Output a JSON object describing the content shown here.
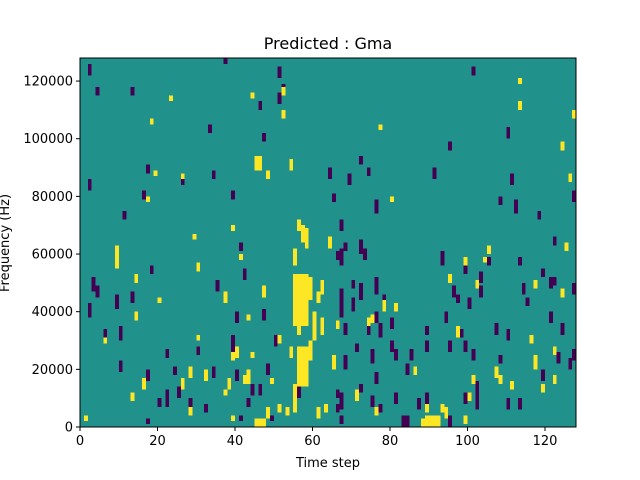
{
  "chart_data": {
    "type": "heatmap",
    "title": "Predicted : Gma",
    "xlabel": "Time step",
    "ylabel": "Frequency (Hz)",
    "xlim": [
      0,
      128
    ],
    "ylim": [
      0,
      128000
    ],
    "x_ticks": [
      0,
      20,
      40,
      60,
      80,
      100,
      120
    ],
    "y_ticks": [
      0,
      20000,
      40000,
      60000,
      80000,
      100000,
      120000
    ],
    "x_tick_labels": [
      "0",
      "20",
      "40",
      "60",
      "80",
      "100",
      "120"
    ],
    "y_tick_labels": [
      "0",
      "20000",
      "40000",
      "60000",
      "80000",
      "100000",
      "120000"
    ],
    "bin_height_hz": 1000,
    "colormap": "viridis",
    "background_value": 0.5,
    "colors": {
      "low": "#440154",
      "mid": "#21918c",
      "high": "#fde725"
    },
    "high_cells": [
      [
        1,
        2,
        4
      ],
      [
        6,
        29,
        31
      ],
      [
        9,
        55,
        63
      ],
      [
        13,
        9,
        12
      ],
      [
        14,
        37,
        40
      ],
      [
        14,
        50,
        53
      ],
      [
        16,
        13,
        17
      ],
      [
        17,
        78,
        80
      ],
      [
        18,
        105,
        107
      ],
      [
        19,
        87,
        89
      ],
      [
        20,
        43,
        45
      ],
      [
        23,
        113,
        115
      ],
      [
        26,
        13,
        17
      ],
      [
        26,
        86,
        88
      ],
      [
        28,
        4,
        7
      ],
      [
        28,
        17,
        21
      ],
      [
        29,
        65,
        67
      ],
      [
        30,
        30,
        32
      ],
      [
        30,
        54,
        57
      ],
      [
        32,
        16,
        20
      ],
      [
        37,
        43,
        47
      ],
      [
        37,
        11,
        13
      ],
      [
        38,
        13,
        17
      ],
      [
        39,
        68,
        70
      ],
      [
        39,
        23,
        26
      ],
      [
        39,
        2,
        4
      ],
      [
        40,
        24,
        28
      ],
      [
        41,
        58,
        60
      ],
      [
        42,
        15,
        18
      ],
      [
        43,
        37,
        39
      ],
      [
        43,
        15,
        20
      ],
      [
        44,
        24,
        26
      ],
      [
        44,
        114,
        116
      ],
      [
        45,
        0,
        3
      ],
      [
        45,
        89,
        94
      ],
      [
        46,
        0,
        3
      ],
      [
        46,
        89,
        94
      ],
      [
        47,
        45,
        49
      ],
      [
        47,
        0,
        3
      ],
      [
        48,
        86,
        89
      ],
      [
        48,
        3,
        7
      ],
      [
        49,
        15,
        17
      ],
      [
        51,
        29,
        32
      ],
      [
        51,
        5,
        8
      ],
      [
        52,
        115,
        118
      ],
      [
        52,
        107,
        110
      ],
      [
        53,
        4,
        7
      ],
      [
        54,
        24,
        28
      ],
      [
        54,
        89,
        93
      ],
      [
        55,
        56,
        62
      ],
      [
        55,
        35,
        53
      ],
      [
        55,
        5,
        15
      ],
      [
        56,
        68,
        72
      ],
      [
        56,
        32,
        53
      ],
      [
        56,
        14,
        28
      ],
      [
        57,
        64,
        70
      ],
      [
        57,
        35,
        53
      ],
      [
        57,
        14,
        28
      ],
      [
        58,
        62,
        69
      ],
      [
        58,
        35,
        53
      ],
      [
        58,
        14,
        28
      ],
      [
        59,
        44,
        52
      ],
      [
        59,
        23,
        30
      ],
      [
        60,
        30,
        40
      ],
      [
        61,
        3,
        7
      ],
      [
        61,
        43,
        47
      ],
      [
        62,
        46,
        51
      ],
      [
        62,
        32,
        38
      ],
      [
        63,
        5,
        8
      ],
      [
        64,
        62,
        66
      ],
      [
        65,
        20,
        25
      ],
      [
        66,
        34,
        37
      ],
      [
        71,
        9,
        13
      ],
      [
        74,
        35,
        38
      ],
      [
        75,
        36,
        39
      ],
      [
        76,
        4,
        7
      ],
      [
        77,
        103,
        105
      ],
      [
        78,
        40,
        44
      ],
      [
        80,
        78,
        80
      ],
      [
        81,
        40,
        43
      ],
      [
        86,
        18,
        21
      ],
      [
        88,
        0,
        3
      ],
      [
        89,
        5,
        8
      ],
      [
        89,
        0,
        4
      ],
      [
        90,
        0,
        4
      ],
      [
        91,
        0,
        4
      ],
      [
        92,
        0,
        4
      ],
      [
        93,
        5,
        8
      ],
      [
        94,
        3,
        7
      ],
      [
        95,
        50,
        53
      ],
      [
        97,
        31,
        35
      ],
      [
        99,
        56,
        59
      ],
      [
        99,
        1,
        4
      ],
      [
        100,
        9,
        12
      ],
      [
        101,
        15,
        18
      ],
      [
        102,
        48,
        51
      ],
      [
        104,
        57,
        59
      ],
      [
        105,
        60,
        63
      ],
      [
        107,
        17,
        21
      ],
      [
        108,
        15,
        18
      ],
      [
        111,
        13,
        16
      ],
      [
        113,
        119,
        121
      ],
      [
        113,
        110,
        113
      ],
      [
        116,
        29,
        32
      ],
      [
        117,
        48,
        51
      ],
      [
        117,
        20,
        25
      ],
      [
        119,
        12,
        15
      ],
      [
        122,
        25,
        28
      ],
      [
        122,
        15,
        18
      ],
      [
        124,
        45,
        48
      ],
      [
        124,
        96,
        99
      ],
      [
        125,
        61,
        64
      ],
      [
        126,
        85,
        88
      ],
      [
        127,
        107,
        110
      ]
    ],
    "low_cells": [
      [
        2,
        122,
        126
      ],
      [
        2,
        82,
        86
      ],
      [
        2,
        38,
        43
      ],
      [
        3,
        47,
        52
      ],
      [
        4,
        45,
        49
      ],
      [
        4,
        115,
        118
      ],
      [
        6,
        30,
        34
      ],
      [
        9,
        42,
        46
      ],
      [
        9,
        41,
        44
      ],
      [
        10,
        30,
        35
      ],
      [
        10,
        19,
        23
      ],
      [
        11,
        72,
        75
      ],
      [
        13,
        115,
        118
      ],
      [
        13,
        43,
        47
      ],
      [
        16,
        79,
        82
      ],
      [
        17,
        88,
        91
      ],
      [
        17,
        16,
        20
      ],
      [
        17,
        1,
        3
      ],
      [
        18,
        53,
        56
      ],
      [
        20,
        7,
        10
      ],
      [
        22,
        7,
        13
      ],
      [
        22,
        24,
        27
      ],
      [
        24,
        18,
        21
      ],
      [
        25,
        10,
        14
      ],
      [
        26,
        84,
        87
      ],
      [
        28,
        7,
        10
      ],
      [
        30,
        25,
        28
      ],
      [
        32,
        5,
        8
      ],
      [
        33,
        102,
        105
      ],
      [
        34,
        86,
        89
      ],
      [
        34,
        17,
        21
      ],
      [
        35,
        47,
        51
      ],
      [
        37,
        126,
        128
      ],
      [
        39,
        79,
        82
      ],
      [
        39,
        28,
        32
      ],
      [
        39,
        24,
        28
      ],
      [
        40,
        36,
        40
      ],
      [
        40,
        16,
        20
      ],
      [
        41,
        61,
        64
      ],
      [
        41,
        2,
        4
      ],
      [
        42,
        51,
        55
      ],
      [
        43,
        7,
        10
      ],
      [
        44,
        11,
        15
      ],
      [
        46,
        11,
        15
      ],
      [
        46,
        110,
        113
      ],
      [
        47,
        99,
        102
      ],
      [
        47,
        37,
        41
      ],
      [
        49,
        2,
        4
      ],
      [
        48,
        18,
        22
      ],
      [
        50,
        28,
        32
      ],
      [
        51,
        121,
        125
      ],
      [
        51,
        112,
        116
      ],
      [
        52,
        117,
        119
      ],
      [
        56,
        10,
        14
      ],
      [
        57,
        47,
        52
      ],
      [
        58,
        17,
        21
      ],
      [
        64,
        86,
        90
      ],
      [
        65,
        78,
        81
      ],
      [
        66,
        58,
        61
      ],
      [
        66,
        10,
        13
      ],
      [
        66,
        5,
        8
      ],
      [
        67,
        68,
        72
      ],
      [
        67,
        56,
        62
      ],
      [
        67,
        38,
        48
      ],
      [
        67,
        6,
        12
      ],
      [
        67,
        1,
        4
      ],
      [
        68,
        32,
        36
      ],
      [
        68,
        20,
        25
      ],
      [
        68,
        61,
        64
      ],
      [
        69,
        84,
        88
      ],
      [
        70,
        48,
        51
      ],
      [
        70,
        40,
        45
      ],
      [
        71,
        26,
        29
      ],
      [
        72,
        91,
        94
      ],
      [
        72,
        60,
        65
      ],
      [
        72,
        44,
        50
      ],
      [
        72,
        12,
        15
      ],
      [
        73,
        58,
        62
      ],
      [
        74,
        87,
        90
      ],
      [
        74,
        32,
        36
      ],
      [
        75,
        22,
        27
      ],
      [
        75,
        7,
        11
      ],
      [
        76,
        74,
        79
      ],
      [
        76,
        46,
        52
      ],
      [
        76,
        36,
        40
      ],
      [
        76,
        15,
        19
      ],
      [
        77,
        31,
        36
      ],
      [
        77,
        5,
        8
      ],
      [
        78,
        42,
        46
      ],
      [
        80,
        34,
        38
      ],
      [
        80,
        26,
        30
      ],
      [
        81,
        23,
        27
      ],
      [
        81,
        8,
        12
      ],
      [
        83,
        0,
        4
      ],
      [
        84,
        0,
        4
      ],
      [
        84,
        18,
        22
      ],
      [
        85,
        23,
        27
      ],
      [
        87,
        6,
        10
      ],
      [
        89,
        8,
        12
      ],
      [
        89,
        26,
        30
      ],
      [
        89,
        32,
        35
      ],
      [
        91,
        86,
        90
      ],
      [
        93,
        56,
        61
      ],
      [
        94,
        36,
        40
      ],
      [
        95,
        26,
        30
      ],
      [
        95,
        0,
        4
      ],
      [
        95,
        96,
        99
      ],
      [
        96,
        45,
        49
      ],
      [
        97,
        43,
        46
      ],
      [
        98,
        31,
        34
      ],
      [
        99,
        8,
        12
      ],
      [
        99,
        26,
        30
      ],
      [
        99,
        53,
        56
      ],
      [
        100,
        41,
        45
      ],
      [
        101,
        122,
        125
      ],
      [
        101,
        23,
        27
      ],
      [
        102,
        12,
        16
      ],
      [
        102,
        6,
        10
      ],
      [
        102,
        10,
        14
      ],
      [
        103,
        50,
        54
      ],
      [
        103,
        45,
        49
      ],
      [
        105,
        56,
        59
      ],
      [
        107,
        32,
        36
      ],
      [
        108,
        22,
        25
      ],
      [
        108,
        77,
        80
      ],
      [
        110,
        30,
        34
      ],
      [
        110,
        6,
        10
      ],
      [
        110,
        100,
        104
      ],
      [
        111,
        84,
        88
      ],
      [
        112,
        74,
        79
      ],
      [
        113,
        56,
        59
      ],
      [
        113,
        6,
        10
      ],
      [
        114,
        46,
        50
      ],
      [
        115,
        42,
        45
      ],
      [
        118,
        72,
        75
      ],
      [
        119,
        52,
        55
      ],
      [
        119,
        16,
        20
      ],
      [
        121,
        48,
        52
      ],
      [
        121,
        36,
        40
      ],
      [
        122,
        63,
        66
      ],
      [
        122,
        49,
        52
      ],
      [
        123,
        22,
        26
      ],
      [
        124,
        32,
        36
      ],
      [
        126,
        20,
        24
      ],
      [
        127,
        23,
        27
      ],
      [
        127,
        46,
        50
      ],
      [
        127,
        78,
        82
      ]
    ]
  }
}
